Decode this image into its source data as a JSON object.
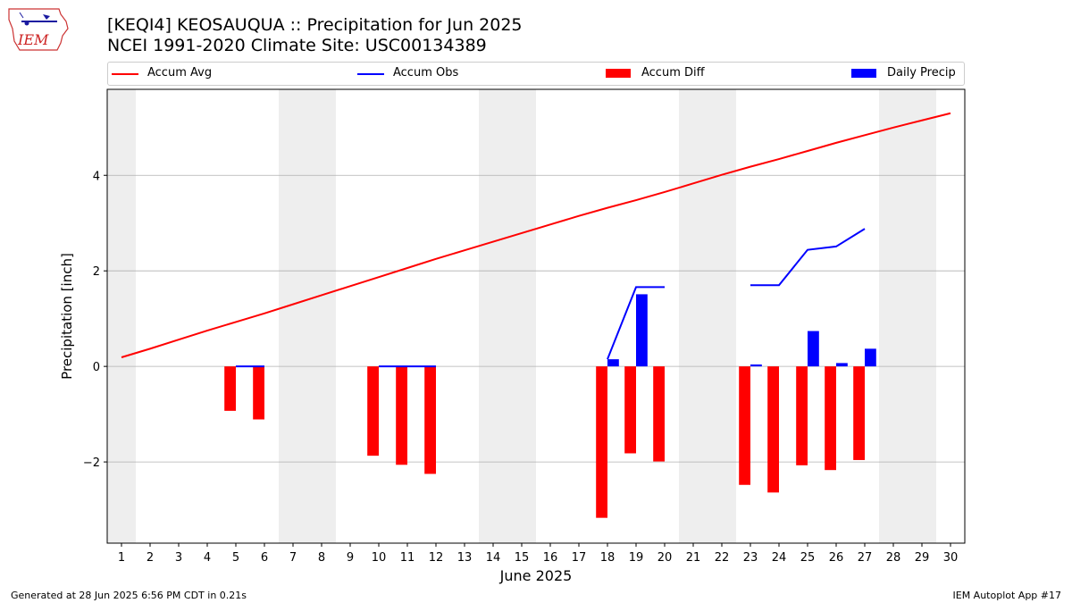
{
  "header": {
    "title": "[KEQI4] KEOSAUQUA :: Precipitation for Jun 2025",
    "subtitle": "NCEI 1991-2020 Climate Site: USC00134389"
  },
  "logo": {
    "text": "IEM"
  },
  "footer": {
    "left": "Generated at 28 Jun 2025 6:56 PM CDT in 0.21s",
    "right": "IEM Autoplot App #17"
  },
  "legend": [
    {
      "label": "Accum Avg",
      "kind": "line",
      "color": "#ff0000"
    },
    {
      "label": "Accum Obs",
      "kind": "line",
      "color": "#0000ff"
    },
    {
      "label": "Accum Diff",
      "kind": "patch",
      "color": "#ff0000"
    },
    {
      "label": "Daily Precip",
      "kind": "patch",
      "color": "#0000ff"
    }
  ],
  "colors": {
    "weekend_band": "#eeeeee",
    "grid": "#b0b0b0",
    "avg": "#ff0000",
    "obs": "#0000ff",
    "diff": "#ff0000",
    "daily": "#0000ff"
  },
  "chart_data": {
    "type": "bar",
    "xlabel": "June 2025",
    "ylabel": "Precipitation [inch]",
    "xlim": [
      0.5,
      30.5
    ],
    "ylim": [
      -3.7,
      5.8
    ],
    "yticks": [
      -2,
      0,
      2,
      4
    ],
    "ytick_labels": [
      "−2",
      "0",
      "2",
      "4"
    ],
    "xticks": [
      1,
      2,
      3,
      4,
      5,
      6,
      7,
      8,
      9,
      10,
      11,
      12,
      13,
      14,
      15,
      16,
      17,
      18,
      19,
      20,
      21,
      22,
      23,
      24,
      25,
      26,
      27,
      28,
      29,
      30
    ],
    "weekend_bands": [
      [
        0.5,
        1.5
      ],
      [
        6.5,
        8.5
      ],
      [
        13.5,
        15.5
      ],
      [
        20.5,
        22.5
      ],
      [
        27.5,
        29.5
      ]
    ],
    "grid": "horizontal",
    "series": [
      {
        "name": "Accum Avg",
        "type": "line",
        "x": [
          1,
          2,
          3,
          4,
          5,
          6,
          7,
          8,
          9,
          10,
          11,
          12,
          13,
          14,
          15,
          16,
          17,
          18,
          19,
          20,
          21,
          22,
          23,
          24,
          25,
          26,
          27,
          28,
          29,
          30
        ],
        "y": [
          0.19,
          0.37,
          0.56,
          0.75,
          0.93,
          1.11,
          1.3,
          1.49,
          1.68,
          1.87,
          2.06,
          2.25,
          2.43,
          2.61,
          2.79,
          2.97,
          3.15,
          3.32,
          3.48,
          3.65,
          3.83,
          4.01,
          4.18,
          4.34,
          4.51,
          4.68,
          4.84,
          5.0,
          5.15,
          5.3
        ]
      },
      {
        "name": "Accum Obs",
        "type": "line",
        "segments": [
          {
            "x": [
              5,
              6
            ],
            "y": [
              0.0,
              0.0
            ]
          },
          {
            "x": [
              10,
              11,
              12
            ],
            "y": [
              0.0,
              0.0,
              0.0
            ]
          },
          {
            "x": [
              18,
              19,
              20
            ],
            "y": [
              0.15,
              1.66,
              1.66
            ]
          },
          {
            "x": [
              23,
              24,
              25,
              26,
              27
            ],
            "y": [
              1.7,
              1.7,
              2.44,
              2.51,
              2.88
            ]
          }
        ]
      },
      {
        "name": "Accum Diff",
        "type": "bar",
        "x": [
          5,
          6,
          10,
          11,
          12,
          18,
          19,
          20,
          23,
          24,
          25,
          26,
          27
        ],
        "values": [
          -0.93,
          -1.11,
          -1.87,
          -2.06,
          -2.25,
          -3.17,
          -1.82,
          -1.99,
          -2.48,
          -2.64,
          -2.07,
          -2.17,
          -1.96
        ]
      },
      {
        "name": "Daily Precip",
        "type": "bar",
        "x": [
          5,
          6,
          10,
          11,
          12,
          18,
          19,
          20,
          23,
          24,
          25,
          26,
          27
        ],
        "values": [
          0.0,
          0.0,
          0.0,
          0.0,
          0.0,
          0.15,
          1.51,
          0.0,
          0.04,
          0.0,
          0.74,
          0.07,
          0.37
        ]
      }
    ]
  }
}
